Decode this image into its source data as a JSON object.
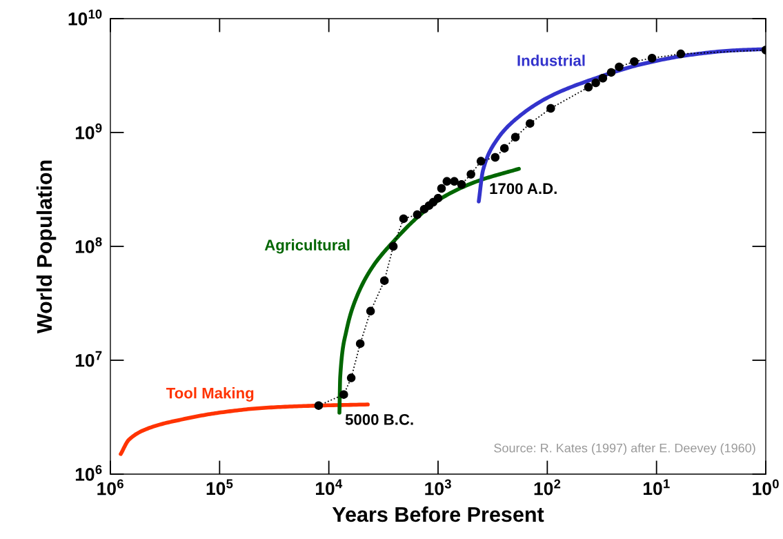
{
  "chart_data": {
    "type": "line",
    "xlabel": "Years Before Present",
    "ylabel": "World Population",
    "log": "xy",
    "xlim": [
      1000000,
      1
    ],
    "ylim": [
      1000000,
      10000000000
    ],
    "xticks": [
      {
        "value": 1000000,
        "label": "10$^{6}$"
      },
      {
        "value": 100000,
        "label": "10$^{5}$"
      },
      {
        "value": 10000,
        "label": "10$^{4}$"
      },
      {
        "value": 1000,
        "label": "10$^{3}$"
      },
      {
        "value": 100,
        "label": "10$^{2}$"
      },
      {
        "value": 10,
        "label": "10$^{1}$"
      },
      {
        "value": 1,
        "label": "10$^{0}$"
      }
    ],
    "yticks": [
      {
        "value": 1000000,
        "label": "10$^{6}$"
      },
      {
        "value": 10000000,
        "label": "10$^{7}$"
      },
      {
        "value": 100000000,
        "label": "10$^{8}$"
      },
      {
        "value": 1000000000,
        "label": "10$^{9}$"
      },
      {
        "value": 10000000000,
        "label": "10$^{10}$"
      }
    ],
    "grid": false,
    "legend": false,
    "series": [
      {
        "color": "#000000",
        "marker": "circle",
        "line_style": "dotted",
        "x": [
          12400,
          7300,
          6240,
          5160,
          4150,
          3100,
          2570,
          2070,
          1550,
          1340,
          1210,
          1110,
          1000,
          930,
          830,
          710,
          610,
          500,
          405,
          300,
          247,
          196,
          144,
          93,
          42,
          36,
          31,
          26,
          22,
          16,
          11,
          6,
          1
        ],
        "values": [
          4000000,
          5000000,
          7000000,
          14000000,
          27000000,
          50000000,
          100000000,
          175000000,
          190000000,
          212000000,
          228000000,
          244000000,
          265000000,
          323000000,
          372000000,
          372000000,
          350000000,
          430000000,
          560000000,
          605000000,
          726000000,
          910000000,
          1200000000,
          1630000000,
          2500000000,
          2730000000,
          3000000000,
          3370000000,
          3770000000,
          4200000000,
          4500000000,
          4900000000,
          5300000000
        ]
      },
      {
        "name": "Tool Making",
        "color": "#ff3300",
        "marker": "none",
        "line_style": "solid",
        "x": [
          804000,
          675000,
          437000,
          211000,
          102000,
          39000,
          14700,
          4400
        ],
        "values": [
          1500000,
          2010000,
          2550000,
          3050000,
          3460000,
          3820000,
          3980000,
          4090000
        ]
      },
      {
        "name": "Agricultural",
        "color": "#006600",
        "marker": "none",
        "line_style": "solid",
        "x": [
          8000,
          7870,
          6920,
          5560,
          3980,
          2460,
          1500,
          930,
          449,
          182
        ],
        "values": [
          3460000,
          7100000,
          18000000,
          36000000,
          66000000,
          115000000,
          185000000,
          265000000,
          370000000,
          480000000
        ]
      },
      {
        "name": "Industrial",
        "color": "#3333cc",
        "marker": "none",
        "line_style": "solid",
        "x": [
          424,
          388,
          290,
          196,
          95,
          36,
          13.7,
          5.2,
          1.98,
          1
        ],
        "values": [
          248000000,
          465000000,
          860000000,
          1300000000,
          2070000000,
          3000000000,
          3980000000,
          4770000000,
          5260000000,
          5400000000
        ]
      }
    ],
    "annotations": [
      "5000 B.C.",
      "1700 A.D.",
      "Source: R. Kates (1997) after E. Deevey (1960)"
    ]
  }
}
